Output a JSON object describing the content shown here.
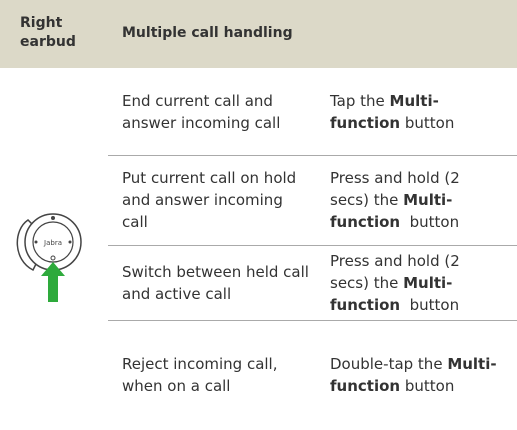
{
  "header": {
    "col1": "Right earbud",
    "col2": "Multiple call handling"
  },
  "image_label": "Jabra",
  "rows": [
    {
      "situation": "End current call and answer incoming call",
      "action": [
        {
          "text": "Tap the "
        },
        {
          "text": "Multi-function",
          "bold": true
        },
        {
          "text": " button"
        }
      ]
    },
    {
      "situation": "Put current call on hold and answer incoming call",
      "action": [
        {
          "text": "Press and hold (2 secs) the "
        },
        {
          "text": "Multi-function",
          "bold": true
        },
        {
          "text": "  button"
        }
      ]
    },
    {
      "situation": "Switch between held call and active call",
      "action": [
        {
          "text": "Press and hold (2 secs) the "
        },
        {
          "text": "Multi-function",
          "bold": true
        },
        {
          "text": "  button"
        }
      ]
    },
    {
      "situation": "Reject incoming call, when on a call",
      "action": [
        {
          "text": "Double-tap the "
        },
        {
          "text": "Multi-function",
          "bold": true
        },
        {
          "text": " button"
        }
      ]
    }
  ]
}
